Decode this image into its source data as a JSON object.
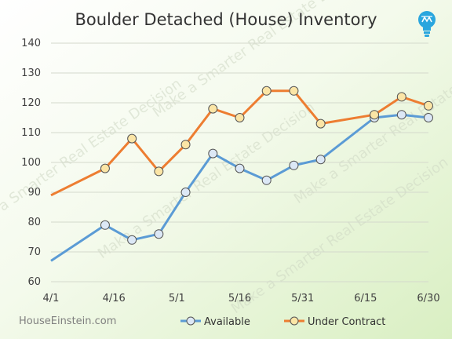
{
  "chart_data": {
    "type": "line",
    "title": "Boulder Detached (House) Inventory",
    "xlabel": "",
    "ylabel": "",
    "x_tick_labels": [
      "4/1",
      "4/16",
      "5/1",
      "5/16",
      "5/31",
      "6/15",
      "6/30"
    ],
    "y_ticks": [
      60,
      70,
      80,
      90,
      100,
      110,
      120,
      130,
      140
    ],
    "ylim": [
      60,
      140
    ],
    "xlim": [
      0,
      90
    ],
    "grid": "horizontal",
    "legend_position": "bottom",
    "series": [
      {
        "name": "Available",
        "color": "#5b9bd5",
        "marker_fill": "#dce8f6",
        "points": [
          {
            "x": 0,
            "y": 67,
            "marker": false
          },
          {
            "x": 12.9,
            "y": 79,
            "marker": true
          },
          {
            "x": 19.3,
            "y": 74,
            "marker": true
          },
          {
            "x": 25.7,
            "y": 76,
            "marker": true
          },
          {
            "x": 32.1,
            "y": 90,
            "marker": true
          },
          {
            "x": 38.6,
            "y": 103,
            "marker": true
          },
          {
            "x": 45,
            "y": 98,
            "marker": true
          },
          {
            "x": 51.4,
            "y": 94,
            "marker": true
          },
          {
            "x": 57.9,
            "y": 99,
            "marker": true
          },
          {
            "x": 64.3,
            "y": 101,
            "marker": true
          },
          {
            "x": 77.1,
            "y": 115,
            "marker": true
          },
          {
            "x": 83.6,
            "y": 116,
            "marker": true
          },
          {
            "x": 90,
            "y": 115,
            "marker": true
          }
        ]
      },
      {
        "name": "Under Contract",
        "color": "#ed7d31",
        "marker_fill": "#fbe5a6",
        "points": [
          {
            "x": 0,
            "y": 89,
            "marker": false
          },
          {
            "x": 12.9,
            "y": 98,
            "marker": true
          },
          {
            "x": 19.3,
            "y": 108,
            "marker": true
          },
          {
            "x": 25.7,
            "y": 97,
            "marker": true
          },
          {
            "x": 32.1,
            "y": 106,
            "marker": true
          },
          {
            "x": 38.6,
            "y": 118,
            "marker": true
          },
          {
            "x": 45,
            "y": 115,
            "marker": true
          },
          {
            "x": 51.4,
            "y": 124,
            "marker": true
          },
          {
            "x": 57.9,
            "y": 124,
            "marker": true
          },
          {
            "x": 64.3,
            "y": 113,
            "marker": true
          },
          {
            "x": 77.1,
            "y": 116,
            "marker": true
          },
          {
            "x": 83.6,
            "y": 122,
            "marker": true
          },
          {
            "x": 90,
            "y": 119,
            "marker": true
          }
        ]
      }
    ]
  },
  "branding": {
    "site": "HouseEinstein.com",
    "watermark": "Make a Smarter Real Estate Decision",
    "logo_icon": "lightbulb-icon",
    "logo_color": "#2aa6de"
  }
}
